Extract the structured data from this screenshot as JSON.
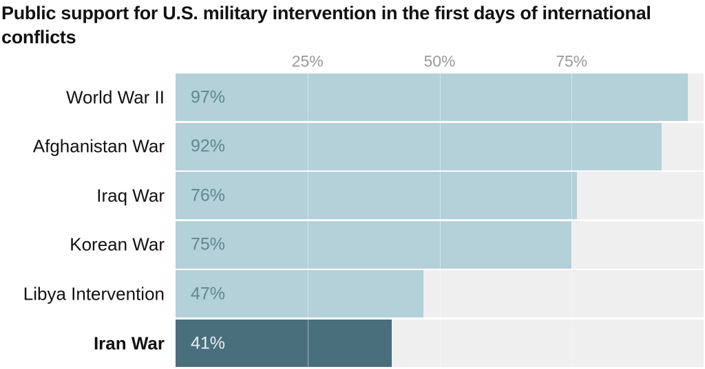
{
  "chart_data": {
    "type": "bar",
    "orientation": "horizontal",
    "title": "Public support for U.S. military intervention in the first days of international conflicts",
    "categories": [
      "World War II",
      "Afghanistan War",
      "Iraq War",
      "Korean War",
      "Libya Intervention",
      "Iran War"
    ],
    "values": [
      97,
      92,
      76,
      75,
      47,
      41
    ],
    "value_labels": [
      "97%",
      "92%",
      "76%",
      "75%",
      "47%",
      "41%"
    ],
    "highlighted": "Iran War",
    "xlim": [
      0,
      100
    ],
    "xticks": [
      25,
      50,
      75
    ],
    "xtick_labels": [
      "25%",
      "50%",
      "75%"
    ],
    "grid": true,
    "colors": {
      "bar": "#b4d0d8",
      "highlight": "#4a6f7c",
      "track": "#efefef",
      "label": "#5f878f",
      "highlight_label": "#e8f1f3"
    }
  }
}
